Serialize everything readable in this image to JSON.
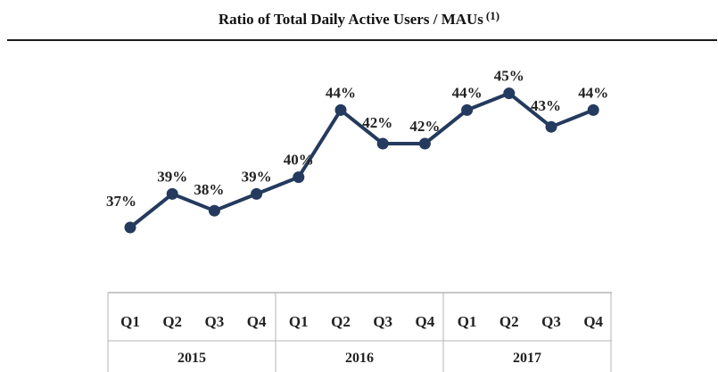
{
  "header": {
    "title": "Ratio of Total Daily Active Users / MAUs",
    "title_note": "(1)"
  },
  "chart_data": {
    "type": "line",
    "title": "Ratio of Total Daily Active Users / MAUs (1)",
    "xlabel": "",
    "ylabel": "",
    "line_color": "#243a5e",
    "grid": false,
    "ylim": [
      35,
      47
    ],
    "groups": [
      {
        "label": "2015",
        "quarters": [
          "Q1",
          "Q2",
          "Q3",
          "Q4"
        ]
      },
      {
        "label": "2016",
        "quarters": [
          "Q1",
          "Q2",
          "Q3",
          "Q4"
        ]
      },
      {
        "label": "2017",
        "quarters": [
          "Q1",
          "Q2",
          "Q3",
          "Q4"
        ]
      }
    ],
    "series": [
      {
        "values": [
          37,
          39,
          38,
          39,
          40,
          44,
          42,
          42,
          44,
          45,
          43,
          44
        ],
        "labels": [
          "37%",
          "39%",
          "38%",
          "39%",
          "40%",
          "44%",
          "42%",
          "42%",
          "44%",
          "45%",
          "43%",
          "44%"
        ]
      }
    ]
  }
}
